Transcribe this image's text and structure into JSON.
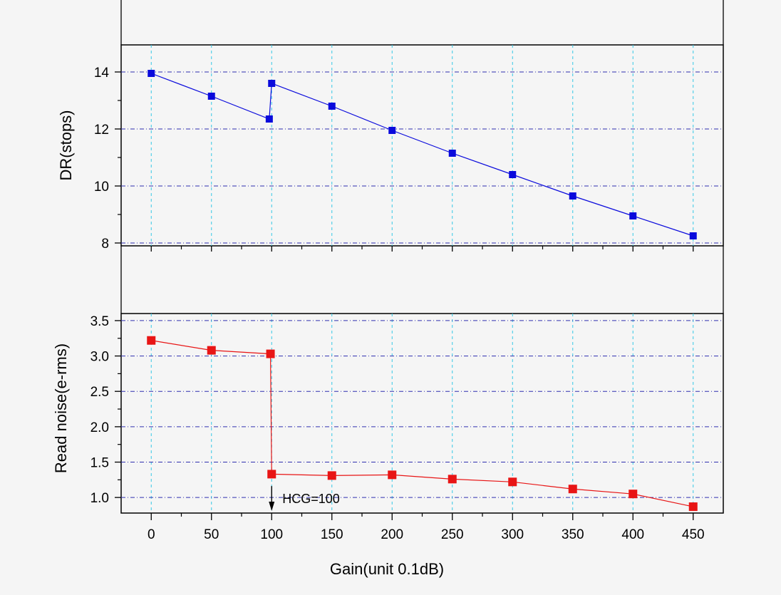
{
  "chart_data": [
    {
      "type": "line",
      "ylabel": "DR(stops)",
      "x": [
        0,
        50,
        98,
        100,
        150,
        200,
        250,
        300,
        350,
        400,
        450
      ],
      "series": [
        {
          "color": "#0a0adc",
          "marker": "square",
          "values": [
            13.95,
            13.15,
            12.35,
            13.6,
            12.8,
            11.95,
            11.15,
            10.4,
            9.65,
            8.95,
            8.25
          ]
        }
      ],
      "xlim": [
        -25,
        475
      ],
      "ylim": [
        7.9,
        14.95
      ],
      "yticks": [
        8,
        10,
        12,
        14
      ],
      "ytick_labels": [
        "8",
        "10",
        "12",
        "14"
      ],
      "grid": true
    },
    {
      "type": "line",
      "ylabel": "Read noise(e-rms)",
      "xlabel": "Gain(unit 0.1dB)",
      "x": [
        0,
        50,
        99,
        100,
        150,
        200,
        250,
        300,
        350,
        400,
        450
      ],
      "series": [
        {
          "color": "#e81515",
          "marker": "square",
          "values": [
            3.22,
            3.08,
            3.03,
            1.33,
            1.31,
            1.32,
            1.26,
            1.22,
            1.12,
            1.05,
            0.87
          ]
        }
      ],
      "xlim": [
        -25,
        475
      ],
      "ylim": [
        0.78,
        3.6
      ],
      "yticks": [
        1.0,
        1.5,
        2.0,
        2.5,
        3.0,
        3.5
      ],
      "ytick_labels": [
        "1.0",
        "1.5",
        "2.0",
        "2.5",
        "3.0",
        "3.5"
      ],
      "xticks": [
        0,
        50,
        100,
        150,
        200,
        250,
        300,
        350,
        400,
        450
      ],
      "xtick_labels": [
        "0",
        "50",
        "100",
        "150",
        "200",
        "250",
        "300",
        "350",
        "400",
        "450"
      ],
      "grid": true,
      "annotation": {
        "text": "HCG=100",
        "x": 100,
        "y_from": 1.0,
        "y_to": 0.82
      }
    }
  ],
  "style": {
    "grid_v_color": "#35c8e6",
    "grid_h_color": "#3030b0",
    "axis_color": "#000000"
  }
}
